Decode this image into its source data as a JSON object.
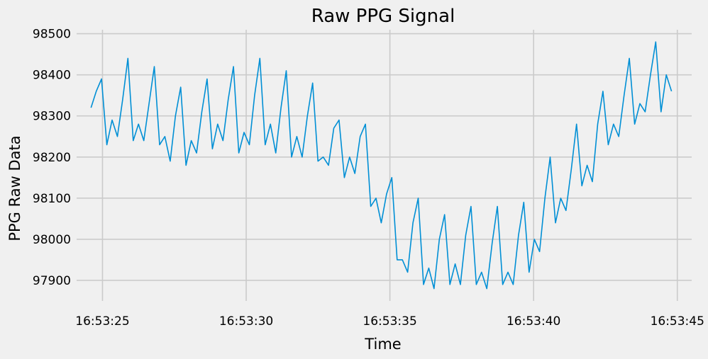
{
  "chart_data": {
    "type": "line",
    "title": "Raw PPG Signal",
    "xlabel": "Time",
    "ylabel": "PPG Raw Data",
    "x_start": "16:53:24.6",
    "x_end": "16:53:44.8",
    "xlim": [
      "16:53:24.1",
      "16:53:45.5"
    ],
    "ylim": [
      97850,
      98520
    ],
    "x_ticks": [
      "16:53:25",
      "16:53:30",
      "16:53:35",
      "16:53:40",
      "16:53:45"
    ],
    "y_ticks": [
      97900,
      98000,
      98100,
      98200,
      98300,
      98400,
      98500
    ],
    "grid": true,
    "series": [
      {
        "color": "#008fd5",
        "values": [
          98320,
          98360,
          98390,
          98230,
          98290,
          98250,
          98340,
          98440,
          98240,
          98280,
          98240,
          98330,
          98420,
          98230,
          98250,
          98190,
          98300,
          98370,
          98180,
          98240,
          98210,
          98310,
          98390,
          98220,
          98280,
          98240,
          98340,
          98420,
          98210,
          98260,
          98230,
          98350,
          98440,
          98230,
          98280,
          98210,
          98320,
          98410,
          98200,
          98250,
          98200,
          98300,
          98380,
          98190,
          98200,
          98180,
          98270,
          98290,
          98150,
          98200,
          98160,
          98250,
          98280,
          98080,
          98100,
          98040,
          98110,
          98150,
          97950,
          97950,
          97920,
          98040,
          98100,
          97890,
          97930,
          97880,
          98000,
          98060,
          97890,
          97940,
          97890,
          98010,
          98080,
          97890,
          97920,
          97880,
          97990,
          98080,
          97890,
          97920,
          97890,
          98010,
          98090,
          97920,
          98000,
          97970,
          98100,
          98200,
          98040,
          98100,
          98070,
          98170,
          98280,
          98130,
          98180,
          98140,
          98280,
          98360,
          98230,
          98280,
          98250,
          98350,
          98440,
          98280,
          98330,
          98310,
          98400,
          98480,
          98310,
          98400,
          98360
        ]
      }
    ]
  }
}
